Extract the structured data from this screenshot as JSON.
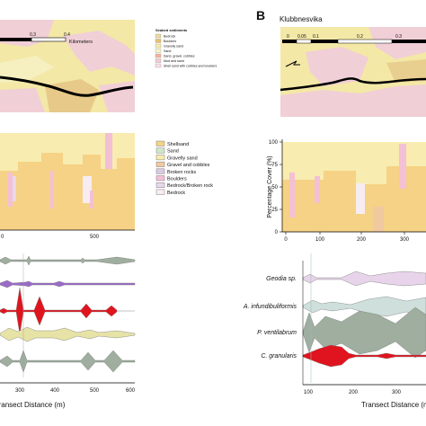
{
  "panel_b": {
    "letter": "B",
    "site": "Klubbnesvika",
    "scale_ticks": [
      "0",
      "0.05",
      "0.1",
      "0.2",
      "0.3"
    ]
  },
  "panel_a": {
    "scale_ticks": [
      "0.3",
      "0.4"
    ],
    "scale_unit": "Kilometers",
    "legend_title": "Seabed sediments",
    "legend_items": [
      {
        "label": "Bedrock",
        "color": "#f0d9a3"
      },
      {
        "label": "Boulders",
        "color": "#e8c070"
      },
      {
        "label": "Gravelly sand",
        "color": "#f5eda8"
      },
      {
        "label": "Sand",
        "color": "#f8f4c4"
      },
      {
        "label": "Sand, gravel, cobbles",
        "color": "#f4b49c"
      },
      {
        "label": "Mud and sand",
        "color": "#f6c9d4"
      },
      {
        "label": "Shell sand with cobbles and boulders",
        "color": "#f8e0e6"
      }
    ]
  },
  "cover_legend": [
    {
      "label": "Shellsand",
      "color": "#f5d285"
    },
    {
      "label": "Sand",
      "color": "#cfe6c8"
    },
    {
      "label": "Gravelly sand",
      "color": "#f8ecb0"
    },
    {
      "label": "Gravel and cobbles",
      "color": "#f1c9a0"
    },
    {
      "label": "Broken rocks",
      "color": "#d8c9e0"
    },
    {
      "label": "Boulders",
      "color": "#f3c0d6"
    },
    {
      "label": "Bedrock/Broken rock",
      "color": "#ead8ec"
    },
    {
      "label": "Bedrock",
      "color": "#f7ecf2"
    }
  ],
  "cover_chart_a": {
    "x_ticks": [
      "0",
      "500"
    ]
  },
  "cover_chart_b": {
    "ylabel": "Percentage Cover (%)",
    "y_ticks": [
      "0",
      "25",
      "50",
      "75",
      "100"
    ],
    "x_ticks": [
      "0",
      "100",
      "200",
      "300"
    ]
  },
  "kite_a": {
    "x_ticks": [
      "300",
      "400",
      "500",
      "600"
    ],
    "xlabel": "Transect Distance (m)"
  },
  "kite_b": {
    "species": [
      "Geodia sp.",
      "A. infundibuliformis",
      "P. ventilabrum",
      "C. granularis"
    ],
    "x_ticks": [
      "100",
      "200",
      "300"
    ],
    "xlabel": "Transect Distance (m)"
  },
  "colors": {
    "shellsand": "#f5d285",
    "geodia": "#e8d4ea",
    "axinella": "#cfe0dc",
    "phakellia": "#9fae9f",
    "craniella": "#e0141e",
    "purple": "#9a6bc9"
  }
}
